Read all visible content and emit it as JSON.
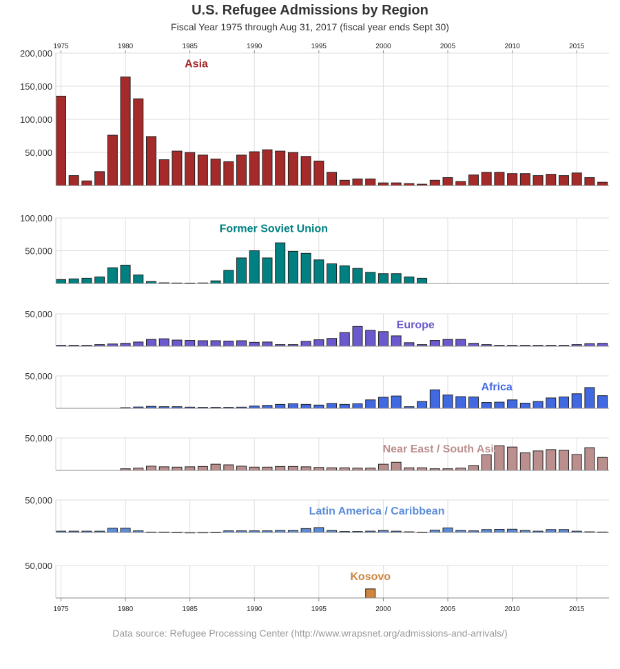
{
  "title": "U.S. Refugee Admissions by Region",
  "subtitle": "Fiscal Year 1975 through Aug 31, 2017 (fiscal year ends Sept 30)",
  "source": "Data source: Refugee Processing Center (http://www.wrapsnet.org/admissions-and-arrivals/)",
  "chart_data": {
    "type": "bar",
    "layout": "small-multiples",
    "x_tick_labels": [
      "1975",
      "1980",
      "1985",
      "1990",
      "1995",
      "2000",
      "2005",
      "2010",
      "2015"
    ],
    "xlim": [
      1974.6,
      2017.5
    ],
    "grid": true,
    "panels": [
      {
        "name": "Asia",
        "color": "#a52a2a",
        "ylim": [
          0,
          200000
        ],
        "y_tick_labels": [
          "200,000",
          "150,000",
          "100,000",
          "50,000"
        ],
        "y_tick_values": [
          200000,
          150000,
          100000,
          50000
        ],
        "label_year": 1985.5,
        "label_value": 185000,
        "points": [
          [
            1975,
            135000
          ],
          [
            1976,
            15000
          ],
          [
            1977,
            7000
          ],
          [
            1978,
            21000
          ],
          [
            1979,
            76000
          ],
          [
            1980,
            164000
          ],
          [
            1981,
            131000
          ],
          [
            1982,
            74000
          ],
          [
            1983,
            39000
          ],
          [
            1984,
            52000
          ],
          [
            1985,
            50000
          ],
          [
            1986,
            46000
          ],
          [
            1987,
            40000
          ],
          [
            1988,
            36000
          ],
          [
            1989,
            46000
          ],
          [
            1990,
            51000
          ],
          [
            1991,
            54000
          ],
          [
            1992,
            52000
          ],
          [
            1993,
            50000
          ],
          [
            1994,
            44000
          ],
          [
            1995,
            37000
          ],
          [
            1996,
            20000
          ],
          [
            1997,
            8000
          ],
          [
            1998,
            10000
          ],
          [
            1999,
            10000
          ],
          [
            2000,
            4000
          ],
          [
            2001,
            4000
          ],
          [
            2002,
            3000
          ],
          [
            2003,
            2000
          ],
          [
            2004,
            8000
          ],
          [
            2005,
            12000
          ],
          [
            2006,
            6000
          ],
          [
            2007,
            16000
          ],
          [
            2008,
            20000
          ],
          [
            2009,
            20000
          ],
          [
            2010,
            18000
          ],
          [
            2011,
            18000
          ],
          [
            2012,
            15000
          ],
          [
            2013,
            17000
          ],
          [
            2014,
            15000
          ],
          [
            2015,
            19000
          ],
          [
            2016,
            12000
          ],
          [
            2017,
            5000
          ]
        ]
      },
      {
        "name": "Former Soviet Union",
        "color": "#008080",
        "ylim": [
          0,
          100000
        ],
        "y_tick_labels": [
          "100,000",
          "50,000"
        ],
        "y_tick_values": [
          100000,
          50000
        ],
        "label_year": 1991.5,
        "label_value": 85000,
        "points": [
          [
            1975,
            6000
          ],
          [
            1976,
            7000
          ],
          [
            1977,
            8000
          ],
          [
            1978,
            10000
          ],
          [
            1979,
            24000
          ],
          [
            1980,
            28000
          ],
          [
            1981,
            13000
          ],
          [
            1982,
            3000
          ],
          [
            1983,
            1000
          ],
          [
            1984,
            700
          ],
          [
            1985,
            600
          ],
          [
            1986,
            800
          ],
          [
            1987,
            4000
          ],
          [
            1988,
            20000
          ],
          [
            1989,
            39000
          ],
          [
            1990,
            50000
          ],
          [
            1991,
            39000
          ],
          [
            1992,
            62000
          ],
          [
            1993,
            49000
          ],
          [
            1994,
            46000
          ],
          [
            1995,
            36000
          ],
          [
            1996,
            30000
          ],
          [
            1997,
            27000
          ],
          [
            1998,
            23000
          ],
          [
            1999,
            17000
          ],
          [
            2000,
            15000
          ],
          [
            2001,
            15000
          ],
          [
            2002,
            10000
          ],
          [
            2003,
            8000
          ]
        ]
      },
      {
        "name": "Europe",
        "color": "#6a5acd",
        "ylim": [
          0,
          50000
        ],
        "y_tick_labels": [
          "50,000"
        ],
        "y_tick_values": [
          50000
        ],
        "label_year": 2002.5,
        "label_value": 34000,
        "points": [
          [
            1975,
            1500
          ],
          [
            1976,
            1500
          ],
          [
            1977,
            1500
          ],
          [
            1978,
            2500
          ],
          [
            1979,
            3500
          ],
          [
            1980,
            4500
          ],
          [
            1981,
            6500
          ],
          [
            1982,
            10500
          ],
          [
            1983,
            11500
          ],
          [
            1984,
            9500
          ],
          [
            1985,
            9000
          ],
          [
            1986,
            8500
          ],
          [
            1987,
            8500
          ],
          [
            1988,
            8000
          ],
          [
            1989,
            8500
          ],
          [
            1990,
            6000
          ],
          [
            1991,
            6500
          ],
          [
            1992,
            2500
          ],
          [
            1993,
            2500
          ],
          [
            1994,
            7500
          ],
          [
            1995,
            10000
          ],
          [
            1996,
            12000
          ],
          [
            1997,
            21000
          ],
          [
            1998,
            30500
          ],
          [
            1999,
            24500
          ],
          [
            2000,
            22500
          ],
          [
            2001,
            16000
          ],
          [
            2002,
            5500
          ],
          [
            2003,
            2500
          ],
          [
            2004,
            9000
          ],
          [
            2005,
            10500
          ],
          [
            2006,
            10500
          ],
          [
            2007,
            4500
          ],
          [
            2008,
            2500
          ],
          [
            2009,
            1500
          ],
          [
            2010,
            1500
          ],
          [
            2011,
            1500
          ],
          [
            2012,
            1500
          ],
          [
            2013,
            1500
          ],
          [
            2014,
            1500
          ],
          [
            2015,
            2500
          ],
          [
            2016,
            4000
          ],
          [
            2017,
            4500
          ]
        ]
      },
      {
        "name": "Africa",
        "color": "#4169e1",
        "ylim": [
          0,
          50000
        ],
        "y_tick_labels": [
          "50,000"
        ],
        "y_tick_values": [
          50000
        ],
        "label_year": 2008.8,
        "label_value": 34000,
        "points": [
          [
            1980,
            1000
          ],
          [
            1981,
            2000
          ],
          [
            1982,
            3000
          ],
          [
            1983,
            2500
          ],
          [
            1984,
            2500
          ],
          [
            1985,
            1800
          ],
          [
            1986,
            1500
          ],
          [
            1987,
            1500
          ],
          [
            1988,
            1500
          ],
          [
            1989,
            1800
          ],
          [
            1990,
            3500
          ],
          [
            1991,
            4500
          ],
          [
            1992,
            6000
          ],
          [
            1993,
            7000
          ],
          [
            1994,
            6000
          ],
          [
            1995,
            5000
          ],
          [
            1996,
            7500
          ],
          [
            1997,
            6000
          ],
          [
            1998,
            7000
          ],
          [
            1999,
            13000
          ],
          [
            2000,
            17000
          ],
          [
            2001,
            19000
          ],
          [
            2002,
            2500
          ],
          [
            2003,
            10500
          ],
          [
            2004,
            28500
          ],
          [
            2005,
            20500
          ],
          [
            2006,
            18000
          ],
          [
            2007,
            17500
          ],
          [
            2008,
            9000
          ],
          [
            2009,
            9500
          ],
          [
            2010,
            13000
          ],
          [
            2011,
            8000
          ],
          [
            2012,
            10500
          ],
          [
            2013,
            16000
          ],
          [
            2014,
            17500
          ],
          [
            2015,
            22500
          ],
          [
            2016,
            32000
          ],
          [
            2017,
            19500
          ]
        ]
      },
      {
        "name": "Near East / South Asia",
        "color": "#bc8f8f",
        "ylim": [
          0,
          50000
        ],
        "y_tick_labels": [
          "50,000"
        ],
        "y_tick_values": [
          50000
        ],
        "label_year": 2004.5,
        "label_value": 34000,
        "points": [
          [
            1980,
            2500
          ],
          [
            1981,
            3500
          ],
          [
            1982,
            6500
          ],
          [
            1983,
            5500
          ],
          [
            1984,
            5000
          ],
          [
            1985,
            5500
          ],
          [
            1986,
            6000
          ],
          [
            1987,
            9500
          ],
          [
            1988,
            8500
          ],
          [
            1989,
            6500
          ],
          [
            1990,
            5000
          ],
          [
            1991,
            5000
          ],
          [
            1992,
            6000
          ],
          [
            1993,
            6000
          ],
          [
            1994,
            5500
          ],
          [
            1995,
            4500
          ],
          [
            1996,
            4000
          ],
          [
            1997,
            4000
          ],
          [
            1998,
            3500
          ],
          [
            1999,
            3500
          ],
          [
            2000,
            9500
          ],
          [
            2001,
            12500
          ],
          [
            2002,
            4000
          ],
          [
            2003,
            4000
          ],
          [
            2004,
            2500
          ],
          [
            2005,
            2500
          ],
          [
            2006,
            3500
          ],
          [
            2007,
            7500
          ],
          [
            2008,
            24000
          ],
          [
            2009,
            38000
          ],
          [
            2010,
            36000
          ],
          [
            2011,
            27000
          ],
          [
            2012,
            30000
          ],
          [
            2013,
            32000
          ],
          [
            2014,
            31000
          ],
          [
            2015,
            24500
          ],
          [
            2016,
            35000
          ],
          [
            2017,
            20000
          ]
        ]
      },
      {
        "name": "Latin America / Caribbean",
        "color": "#5b8cd9",
        "ylim": [
          0,
          50000
        ],
        "y_tick_labels": [
          "50,000"
        ],
        "y_tick_values": [
          50000
        ],
        "label_year": 1999.5,
        "label_value": 34000,
        "points": [
          [
            1975,
            2000
          ],
          [
            1976,
            2000
          ],
          [
            1977,
            2000
          ],
          [
            1978,
            2000
          ],
          [
            1979,
            6500
          ],
          [
            1980,
            6500
          ],
          [
            1981,
            2500
          ],
          [
            1982,
            600
          ],
          [
            1983,
            600
          ],
          [
            1984,
            300
          ],
          [
            1985,
            100
          ],
          [
            1986,
            200
          ],
          [
            1987,
            300
          ],
          [
            1988,
            2500
          ],
          [
            1989,
            2500
          ],
          [
            1990,
            2500
          ],
          [
            1991,
            2500
          ],
          [
            1992,
            3000
          ],
          [
            1993,
            3000
          ],
          [
            1994,
            6000
          ],
          [
            1995,
            7500
          ],
          [
            1996,
            3000
          ],
          [
            1997,
            1500
          ],
          [
            1998,
            1500
          ],
          [
            1999,
            2000
          ],
          [
            2000,
            3000
          ],
          [
            2001,
            2000
          ],
          [
            2002,
            1000
          ],
          [
            2003,
            500
          ],
          [
            2004,
            3500
          ],
          [
            2005,
            7000
          ],
          [
            2006,
            3000
          ],
          [
            2007,
            2500
          ],
          [
            2008,
            4500
          ],
          [
            2009,
            4800
          ],
          [
            2010,
            5000
          ],
          [
            2011,
            3000
          ],
          [
            2012,
            2000
          ],
          [
            2013,
            4500
          ],
          [
            2014,
            4500
          ],
          [
            2015,
            2000
          ],
          [
            2016,
            1000
          ],
          [
            2017,
            700
          ]
        ]
      },
      {
        "name": "Kosovo",
        "color": "#cd853f",
        "ylim": [
          0,
          50000
        ],
        "y_tick_labels": [
          "50,000"
        ],
        "y_tick_values": [
          50000
        ],
        "label_year": 1999.0,
        "label_value": 34000,
        "points": [
          [
            1999,
            14000
          ]
        ]
      }
    ]
  }
}
